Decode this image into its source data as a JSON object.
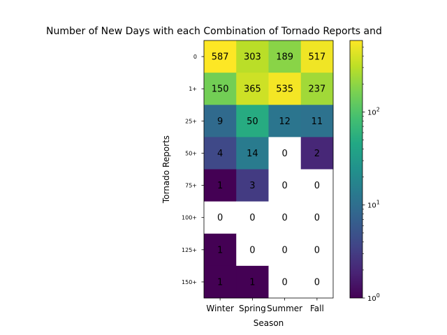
{
  "chart_data": {
    "type": "heatmap",
    "title": "Number of New Days with each Combination of Tornado Reports and",
    "xlabel": "Season",
    "ylabel": "Tornado Reports",
    "x_categories": [
      "Winter",
      "Spring",
      "Summer",
      "Fall"
    ],
    "y_categories": [
      "0",
      "1+",
      "25+",
      "50+",
      "75+",
      "100+",
      "125+",
      "150+"
    ],
    "values": [
      [
        587,
        303,
        189,
        517
      ],
      [
        150,
        365,
        535,
        237
      ],
      [
        9,
        50,
        12,
        11
      ],
      [
        4,
        14,
        0,
        2
      ],
      [
        1,
        3,
        0,
        0
      ],
      [
        0,
        0,
        0,
        0
      ],
      [
        1,
        0,
        0,
        0
      ],
      [
        1,
        1,
        0,
        0
      ]
    ],
    "color_scale": "log",
    "colormap": "viridis",
    "colorbar": {
      "range": [
        1,
        587
      ],
      "ticks": [
        {
          "value": 1,
          "base": "10",
          "exp": "0"
        },
        {
          "value": 10,
          "base": "10",
          "exp": "1"
        },
        {
          "value": 100,
          "base": "10",
          "exp": "2"
        }
      ]
    },
    "zero_color": "#ffffff"
  }
}
